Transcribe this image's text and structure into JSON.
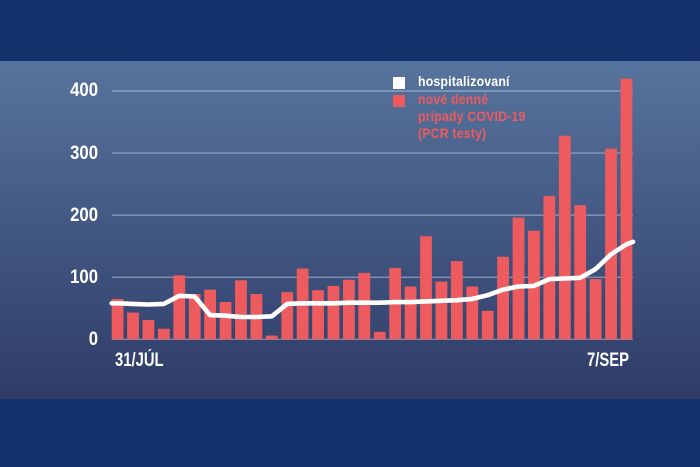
{
  "legend": {
    "hospitalized_label": "hospitalizovaní",
    "cases_label_line1": "nové denné",
    "cases_label_line2": "prípady COVID-19",
    "cases_label_line3": "(PCR testy)"
  },
  "axis": {
    "y_ticks": [
      400,
      300,
      200,
      100,
      0
    ],
    "x_start_label": "31/JÚL",
    "x_end_label": "7/SEP"
  },
  "colors": {
    "outer_bg": "#15326D",
    "panel_top": "#56749D",
    "panel_bottom": "#2E3B67",
    "bar": "#EE5B5E",
    "line": "#FFFFFF",
    "grid": "rgba(215,228,245,0.5)",
    "legend_cases_text": "#EE5B5E",
    "axis_text": "#FFFFFF"
  },
  "chart_data": {
    "type": "bar",
    "title": "",
    "x_axis": {
      "start_label": "31/JÚL",
      "end_label": "7/SEP",
      "n_points": 34
    },
    "ylim": [
      0,
      450
    ],
    "y_ticks": [
      0,
      100,
      200,
      300,
      400
    ],
    "grid": true,
    "series": [
      {
        "name": "nové denné prípady COVID-19 (PCR testy)",
        "type": "bar",
        "values": [
          65,
          43,
          31,
          17,
          103,
          73,
          80,
          60,
          95,
          73,
          6,
          76,
          114,
          79,
          86,
          96,
          107,
          12,
          115,
          85,
          166,
          93,
          126,
          85,
          46,
          133,
          196,
          175,
          231,
          328,
          216,
          97,
          307,
          420
        ]
      },
      {
        "name": "hospitalizovaní",
        "type": "line",
        "values": [
          58,
          57,
          56,
          57,
          70,
          69,
          39,
          38,
          36,
          36,
          37,
          57,
          58,
          58,
          58,
          59,
          59,
          59,
          60,
          60,
          61,
          62,
          63,
          65,
          71,
          80,
          85,
          86,
          97,
          98,
          99,
          113,
          137,
          153
        ],
        "end_extension_value": 157
      }
    ]
  }
}
